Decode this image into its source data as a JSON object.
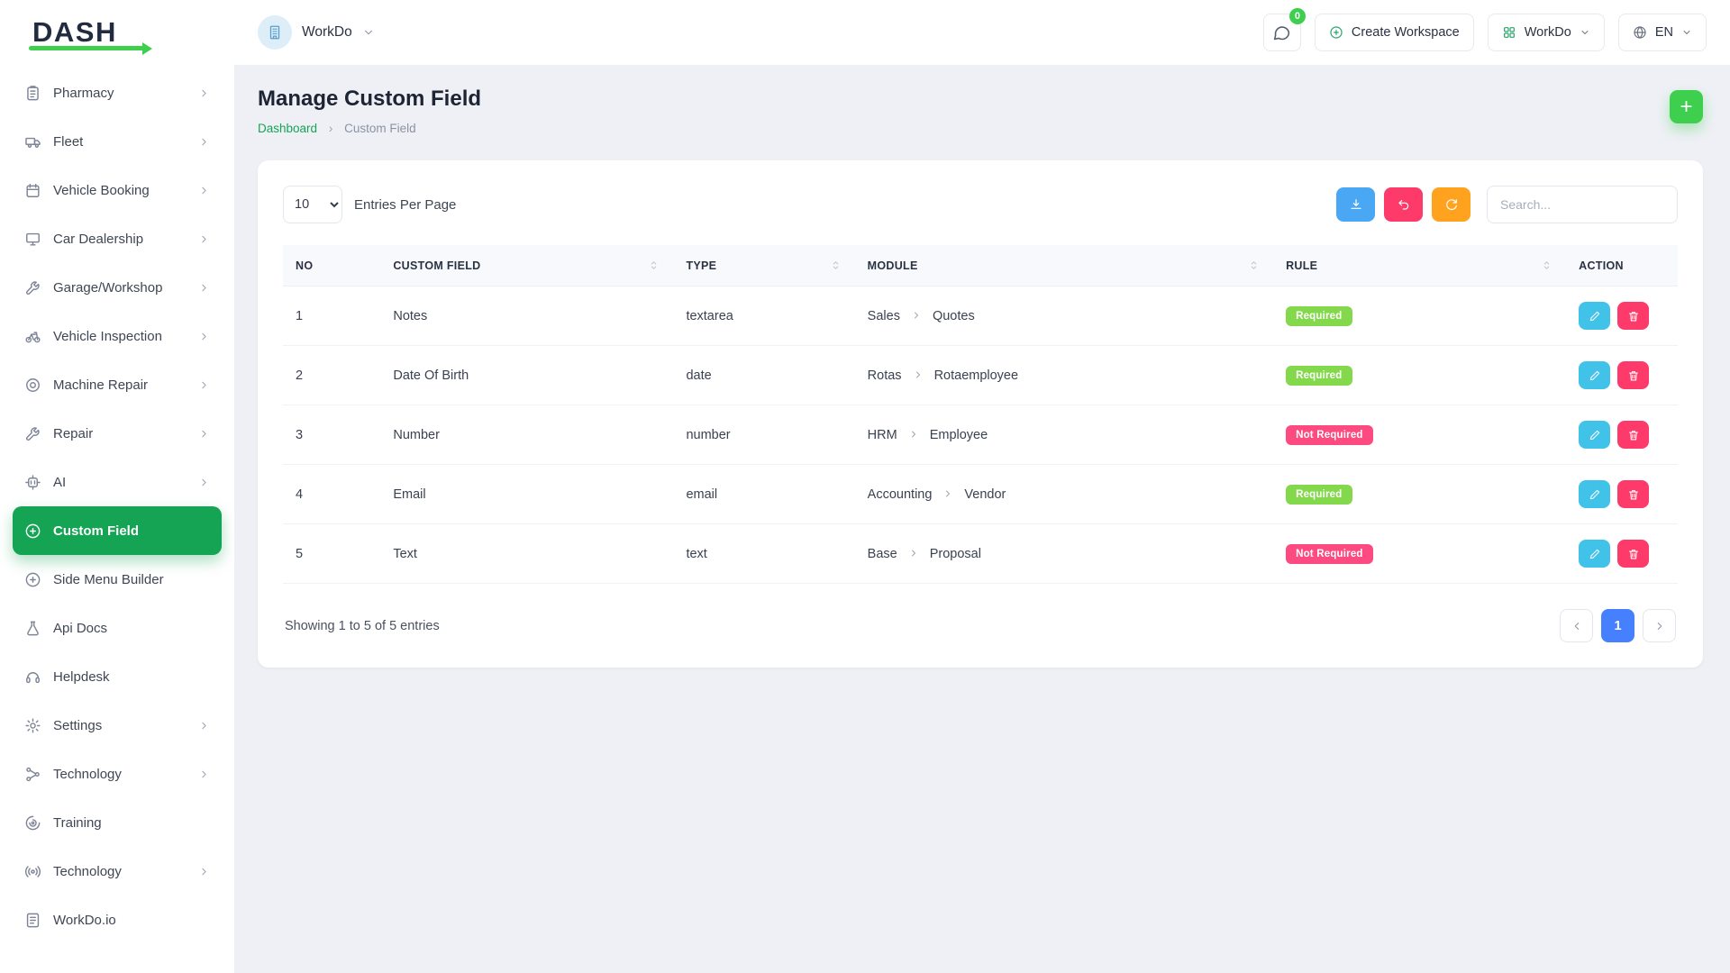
{
  "colors": {
    "primary": "#14a454",
    "primary_bright": "#3ecf4e",
    "badge_success": "#83d84b",
    "badge_danger": "#fd4a80",
    "btn_edit": "#41c3e9",
    "btn_download": "#4aa7f3",
    "btn_undo": "#fd3a69",
    "btn_delete": "#fd3a69",
    "btn_refresh": "#ffa21e",
    "pagination_active": "#4680ff"
  },
  "header": {
    "brand": "DASH",
    "workspace": {
      "name": "WorkDo",
      "icon": "building"
    },
    "messages_badge": "0",
    "create_workspace_label": "Create Workspace",
    "apps_menu_label": "WorkDo",
    "language": "EN"
  },
  "sidebar": {
    "items": [
      {
        "label": "Pharmacy",
        "icon": "clipboard",
        "chevron": true
      },
      {
        "label": "Fleet",
        "icon": "truck",
        "chevron": true
      },
      {
        "label": "Vehicle Booking",
        "icon": "calendar",
        "chevron": true
      },
      {
        "label": "Car Dealership",
        "icon": "monitor",
        "chevron": true
      },
      {
        "label": "Garage/Workshop",
        "icon": "wrench",
        "chevron": true
      },
      {
        "label": "Vehicle Inspection",
        "icon": "bike",
        "chevron": true
      },
      {
        "label": "Machine Repair",
        "icon": "target",
        "chevron": true
      },
      {
        "label": "Repair",
        "icon": "wrench",
        "chevron": true
      },
      {
        "label": "AI",
        "icon": "ai",
        "chevron": true
      },
      {
        "label": "Custom Field",
        "icon": "plus-circle",
        "active": true
      },
      {
        "label": "Side Menu Builder",
        "icon": "plus-circle"
      },
      {
        "label": "Api Docs",
        "icon": "flask"
      },
      {
        "label": "Helpdesk",
        "icon": "headset"
      },
      {
        "label": "Settings",
        "icon": "gear",
        "chevron": true
      },
      {
        "label": "Technology",
        "icon": "branch",
        "chevron": true
      },
      {
        "label": "Training",
        "icon": "spiral"
      },
      {
        "label": "Technology",
        "icon": "radio",
        "chevron": true
      },
      {
        "label": "WorkDo.io",
        "icon": "doc"
      }
    ]
  },
  "page": {
    "title": "Manage Custom Field",
    "breadcrumb": {
      "home": "Dashboard",
      "separator": "›",
      "current": "Custom Field"
    },
    "add_button": "+"
  },
  "toolbar": {
    "entries_value": "10",
    "entries_label": "Entries Per Page",
    "buttons": [
      {
        "name": "download",
        "icon": "download"
      },
      {
        "name": "undo",
        "icon": "undo"
      },
      {
        "name": "refresh",
        "icon": "refresh"
      }
    ],
    "search_placeholder": "Search..."
  },
  "table": {
    "headers": [
      {
        "label": "NO",
        "sortable": false
      },
      {
        "label": "CUSTOM FIELD",
        "sortable": true
      },
      {
        "label": "TYPE",
        "sortable": true
      },
      {
        "label": "MODULE",
        "sortable": true
      },
      {
        "label": "RULE",
        "sortable": true
      },
      {
        "label": "ACTION",
        "sortable": false
      }
    ],
    "rows": [
      {
        "no": "1",
        "field": "Notes",
        "type": "textarea",
        "module_parent": "Sales",
        "module_child": "Quotes",
        "rule": "Required",
        "rule_variant": "success"
      },
      {
        "no": "2",
        "field": "Date Of Birth",
        "type": "date",
        "module_parent": "Rotas",
        "module_child": "Rotaemployee",
        "rule": "Required",
        "rule_variant": "success"
      },
      {
        "no": "3",
        "field": "Number",
        "type": "number",
        "module_parent": "HRM",
        "module_child": "Employee",
        "rule": "Not Required",
        "rule_variant": "danger"
      },
      {
        "no": "4",
        "field": "Email",
        "type": "email",
        "module_parent": "Accounting",
        "module_child": "Vendor",
        "rule": "Required",
        "rule_variant": "success"
      },
      {
        "no": "5",
        "field": "Text",
        "type": "text",
        "module_parent": "Base",
        "module_child": "Proposal",
        "rule": "Not Required",
        "rule_variant": "danger"
      }
    ]
  },
  "pagination": {
    "showing": "Showing 1 to 5 of 5 entries",
    "current_page": "1"
  }
}
